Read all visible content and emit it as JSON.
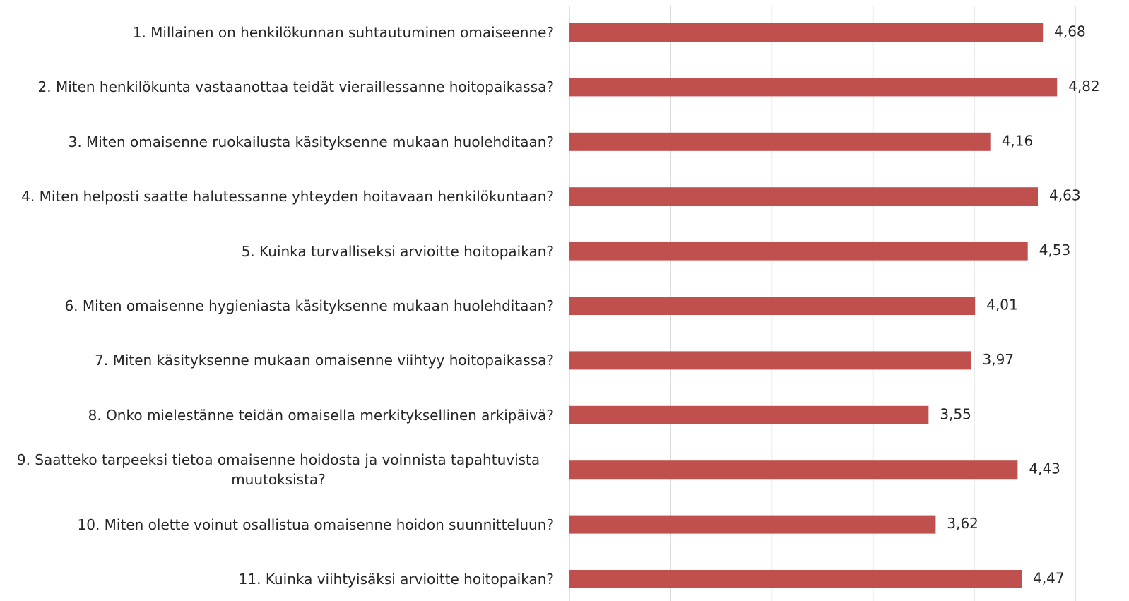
{
  "chart_data": {
    "type": "bar",
    "orientation": "horizontal",
    "categories": [
      "1. Millainen on henkilökunnan suhtautuminen omaiseenne?",
      "2. Miten henkilökunta vastaanottaa teidät vieraillessanne hoitopaikassa?",
      "3. Miten omaisenne ruokailusta käsityksenne mukaan huolehditaan?",
      "4. Miten helposti saatte halutessanne yhteyden hoitavaan henkilökuntaan?",
      "5. Kuinka turvalliseksi arvioitte hoitopaikan?",
      "6. Miten omaisenne hygieniasta käsityksenne mukaan huolehditaan?",
      "7. Miten käsityksenne mukaan omaisenne viihtyy hoitopaikassa?",
      "8. Onko mielestänne teidän omaisella merkityksellinen arkipäivä?",
      "9. Saatteko tarpeeksi tietoa omaisenne hoidosta ja voinnista tapahtuvista muutoksista?",
      "10. Miten olette voinut osallistua omaisenne hoidon suunnitteluun?",
      "11. Kuinka viihtyisäksi arvioitte hoitopaikan?"
    ],
    "values": [
      4.68,
      4.82,
      4.16,
      4.63,
      4.53,
      4.01,
      3.97,
      3.55,
      4.43,
      3.62,
      4.47
    ],
    "value_labels": [
      "4,68",
      "4,82",
      "4,16",
      "4,63",
      "4,53",
      "4,01",
      "3,97",
      "3,55",
      "4,43",
      "3,62",
      "4,47"
    ],
    "color": "#c0504d",
    "xlim": [
      0,
      5
    ],
    "xticks": [
      0,
      1,
      2,
      3,
      4,
      5
    ],
    "grid": true
  }
}
